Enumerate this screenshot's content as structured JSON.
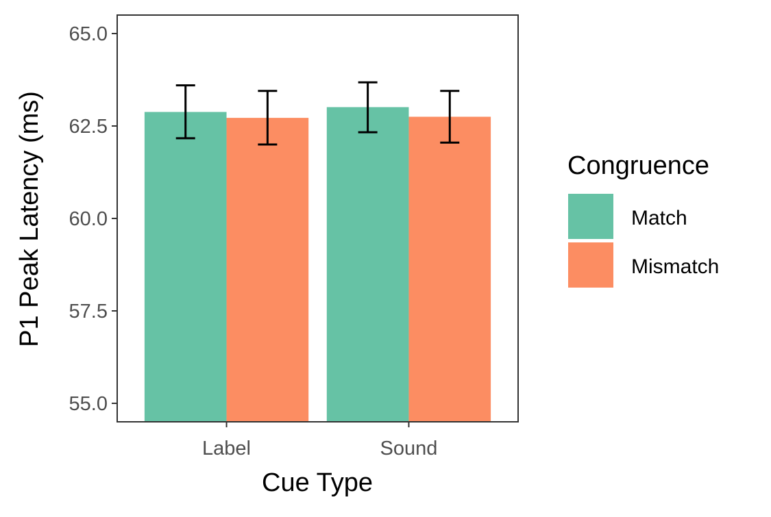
{
  "chart_data": {
    "type": "bar",
    "title": "",
    "xlabel": "Cue Type",
    "ylabel": "P1 Peak Latency (ms)",
    "categories": [
      "Label",
      "Sound"
    ],
    "ylim": [
      54.5,
      65.5
    ],
    "yticks": [
      55.0,
      57.5,
      60.0,
      62.5,
      65.0
    ],
    "ytick_labels": [
      "55.0",
      "57.5",
      "60.0",
      "62.5",
      "65.0"
    ],
    "grid": false,
    "legend": {
      "title": "Congruence",
      "position": "right"
    },
    "series": [
      {
        "name": "Match",
        "color": "#66c2a5",
        "values": [
          62.88,
          63.01
        ],
        "error": [
          {
            "low": 62.17,
            "high": 63.6
          },
          {
            "low": 62.33,
            "high": 63.68
          }
        ]
      },
      {
        "name": "Mismatch",
        "color": "#fc8d62",
        "values": [
          62.72,
          62.75
        ],
        "error": [
          {
            "low": 62.0,
            "high": 63.45
          },
          {
            "low": 62.05,
            "high": 63.45
          }
        ]
      }
    ]
  }
}
